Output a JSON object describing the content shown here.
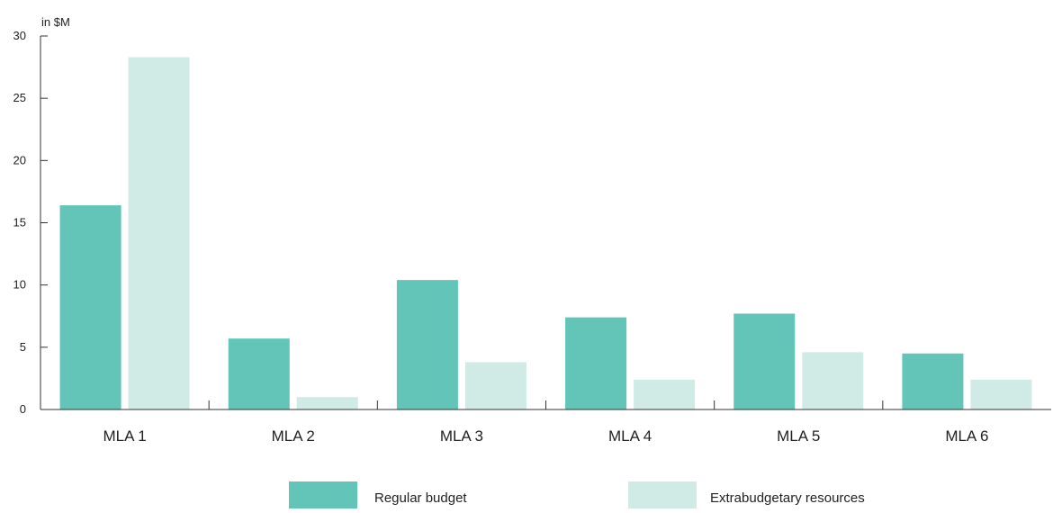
{
  "chart_data": {
    "type": "bar",
    "ylabel": "in $M",
    "categories": [
      "MLA 1",
      "MLA 2",
      "MLA 3",
      "MLA 4",
      "MLA 5",
      "MLA 6"
    ],
    "series": [
      {
        "name": "Regular budget",
        "color": "#62c5b8",
        "values": [
          16.4,
          5.7,
          10.4,
          7.4,
          7.7,
          4.5
        ]
      },
      {
        "name": "Extrabudgetary resources",
        "color": "#d0ebe6",
        "values": [
          28.3,
          1.0,
          3.8,
          2.4,
          4.6,
          2.4
        ]
      }
    ],
    "ylim": [
      0,
      30
    ],
    "yticks": [
      0,
      5,
      10,
      15,
      20,
      25,
      30
    ],
    "grid": false,
    "legend_position": "bottom-center"
  }
}
